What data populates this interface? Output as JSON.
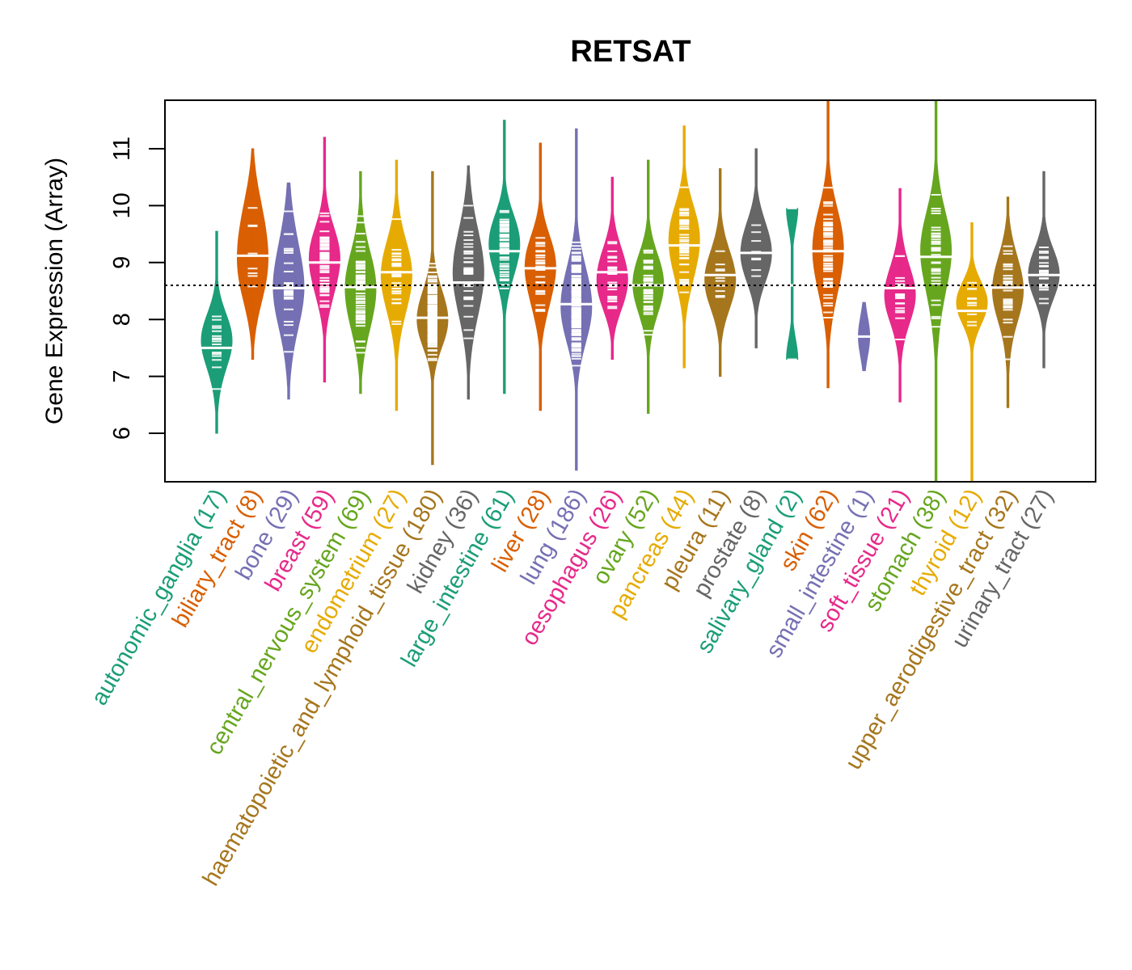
{
  "chart_data": {
    "type": "beanplot",
    "title": "RETSAT",
    "xlabel": "",
    "ylabel": "Gene Expression (Array)",
    "ylim": [
      5.15,
      11.85
    ],
    "yticks": [
      6,
      7,
      8,
      9,
      10,
      11
    ],
    "ytick_labels": [
      "6",
      "7",
      "8",
      "9",
      "10",
      "11"
    ],
    "reference_line": {
      "value": 8.6,
      "style": "dotted"
    },
    "grid": false,
    "legend": "none",
    "x_label_rotation_deg": 60,
    "groups": [
      {
        "name": "autonomic_ganglia",
        "n": 17,
        "label": "autonomic_ganglia (17)",
        "color": "#1B9E77",
        "median": 7.5,
        "min": 6.0,
        "max": 9.55,
        "q_low": 6.7,
        "q_high": 8.1
      },
      {
        "name": "biliary_tract",
        "n": 8,
        "label": "biliary_tract (8)",
        "color": "#D95F02",
        "median": 9.12,
        "min": 7.3,
        "max": 11.0,
        "q_low": 8.1,
        "q_high": 10.2
      },
      {
        "name": "bone",
        "n": 29,
        "label": "bone (29)",
        "color": "#7570B3",
        "median": 8.55,
        "min": 6.6,
        "max": 10.4,
        "q_low": 7.5,
        "q_high": 9.6
      },
      {
        "name": "breast",
        "n": 59,
        "label": "breast (59)",
        "color": "#E7298A",
        "median": 9.0,
        "min": 6.9,
        "max": 11.2,
        "q_low": 8.2,
        "q_high": 9.7
      },
      {
        "name": "central_nervous_system",
        "n": 69,
        "label": "central_nervous_system (69)",
        "color": "#66A61E",
        "median": 8.57,
        "min": 6.7,
        "max": 10.6,
        "q_low": 7.7,
        "q_high": 9.4
      },
      {
        "name": "endometrium",
        "n": 27,
        "label": "endometrium (27)",
        "color": "#E6AB02",
        "median": 8.83,
        "min": 6.4,
        "max": 10.8,
        "q_low": 7.9,
        "q_high": 9.7
      },
      {
        "name": "haematopoietic_and_lymphoid_tissue",
        "n": 180,
        "label": "haematopoietic_and_lymphoid_tissue (180)",
        "color": "#A6761D",
        "median": 8.03,
        "min": 5.45,
        "max": 10.6,
        "q_low": 7.4,
        "q_high": 8.7
      },
      {
        "name": "kidney",
        "n": 36,
        "label": "kidney (36)",
        "color": "#666666",
        "median": 8.65,
        "min": 6.6,
        "max": 10.7,
        "q_low": 7.6,
        "q_high": 9.7
      },
      {
        "name": "large_intestine",
        "n": 61,
        "label": "large_intestine (61)",
        "color": "#1B9E77",
        "median": 9.2,
        "min": 6.7,
        "max": 11.5,
        "q_low": 8.5,
        "q_high": 9.9
      },
      {
        "name": "liver",
        "n": 28,
        "label": "liver (28)",
        "color": "#D95F02",
        "median": 8.9,
        "min": 6.4,
        "max": 11.1,
        "q_low": 8.1,
        "q_high": 9.6
      },
      {
        "name": "lung",
        "n": 186,
        "label": "lung (186)",
        "color": "#7570B3",
        "median": 8.27,
        "min": 5.35,
        "max": 11.35,
        "q_low": 7.4,
        "q_high": 9.0
      },
      {
        "name": "oesophagus",
        "n": 26,
        "label": "oesophagus (26)",
        "color": "#E7298A",
        "median": 8.83,
        "min": 7.3,
        "max": 10.5,
        "q_low": 8.2,
        "q_high": 9.5
      },
      {
        "name": "ovary",
        "n": 52,
        "label": "ovary (52)",
        "color": "#66A61E",
        "median": 8.6,
        "min": 6.35,
        "max": 10.8,
        "q_low": 7.9,
        "q_high": 9.3
      },
      {
        "name": "pancreas",
        "n": 44,
        "label": "pancreas (44)",
        "color": "#E6AB02",
        "median": 9.3,
        "min": 7.15,
        "max": 11.4,
        "q_low": 8.5,
        "q_high": 10.0
      },
      {
        "name": "pleura",
        "n": 11,
        "label": "pleura (11)",
        "color": "#A6761D",
        "median": 8.78,
        "min": 7.0,
        "max": 10.65,
        "q_low": 8.0,
        "q_high": 9.6
      },
      {
        "name": "prostate",
        "n": 8,
        "label": "prostate (8)",
        "color": "#666666",
        "median": 9.17,
        "min": 7.5,
        "max": 11.0,
        "q_low": 8.5,
        "q_high": 9.9
      },
      {
        "name": "salivary_gland",
        "n": 2,
        "label": "salivary_gland (2)",
        "color": "#1B9E77",
        "median": 8.6,
        "min": 7.3,
        "max": 9.95,
        "points": [
          9.95,
          7.3
        ]
      },
      {
        "name": "skin",
        "n": 62,
        "label": "skin (62)",
        "color": "#D95F02",
        "median": 9.2,
        "min": 6.8,
        "max": 11.9,
        "q_low": 8.3,
        "q_high": 10.1
      },
      {
        "name": "small_intestine",
        "n": 1,
        "label": "small_intestine (1)",
        "color": "#7570B3",
        "median": 7.7,
        "min": 7.1,
        "max": 8.3,
        "points": [
          7.7
        ]
      },
      {
        "name": "soft_tissue",
        "n": 21,
        "label": "soft_tissue (21)",
        "color": "#E7298A",
        "median": 8.55,
        "min": 6.55,
        "max": 10.3,
        "q_low": 7.8,
        "q_high": 9.3
      },
      {
        "name": "stomach",
        "n": 38,
        "label": "stomach (38)",
        "color": "#66A61E",
        "median": 9.1,
        "min": 5.15,
        "max": 11.9,
        "q_low": 8.0,
        "q_high": 9.9
      },
      {
        "name": "thyroid",
        "n": 12,
        "label": "thyroid (12)",
        "color": "#E6AB02",
        "median": 8.15,
        "min": 5.15,
        "max": 9.7,
        "q_low": 8.0,
        "q_high": 9.0
      },
      {
        "name": "upper_aerodigestive_tract",
        "n": 32,
        "label": "upper_aerodigestive_tract (32)",
        "color": "#A6761D",
        "median": 8.56,
        "min": 6.45,
        "max": 10.15,
        "q_low": 7.8,
        "q_high": 9.3
      },
      {
        "name": "urinary_tract",
        "n": 27,
        "label": "urinary_tract (27)",
        "color": "#666666",
        "median": 8.78,
        "min": 7.15,
        "max": 10.6,
        "q_low": 8.1,
        "q_high": 9.4
      }
    ]
  }
}
